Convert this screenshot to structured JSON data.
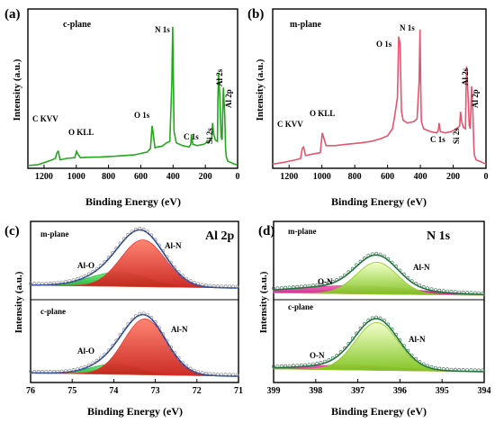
{
  "chart_data": [
    {
      "type": "line",
      "panel_label": "(a)",
      "sample_label": "c-plane",
      "xlabel": "Binding Energy (eV)",
      "ylabel": "Intensity (a.u.)",
      "xlim": [
        1300,
        0
      ],
      "xticks": [
        1200,
        1000,
        800,
        600,
        400,
        200,
        0
      ],
      "color": "#23a81c",
      "series": [
        {
          "x": [
            1300,
            1240,
            1200,
            1160,
            1130,
            1120,
            1112,
            1100,
            1060,
            1010,
            998,
            990,
            975,
            920,
            850,
            760,
            700,
            640,
            600,
            560,
            540,
            530,
            525,
            512,
            500,
            470,
            440,
            420,
            408,
            402,
            398,
            394,
            380,
            340,
            300,
            290,
            286,
            278,
            250,
            210,
            180,
            160,
            155,
            148,
            138,
            125,
            122,
            118,
            110,
            102,
            96,
            92,
            88,
            80,
            74,
            70,
            60,
            40,
            20,
            0
          ],
          "y": [
            2,
            2.5,
            4,
            5.5,
            7,
            11,
            12,
            6,
            7,
            7.5,
            12,
            10,
            7.5,
            7.8,
            8,
            8.5,
            9,
            9.5,
            10.5,
            11.5,
            14,
            30,
            26,
            14.5,
            15,
            15.5,
            18,
            19,
            60,
            100,
            60,
            26,
            18,
            16,
            15,
            17,
            24,
            17,
            16,
            17,
            19,
            21,
            32,
            24,
            20,
            19,
            48,
            67,
            50,
            22,
            20,
            40,
            57,
            38,
            13,
            8,
            5,
            4,
            3,
            2.5
          ]
        }
      ],
      "annotations": [
        "C KVV",
        "O KLL",
        "O 1s",
        "N 1s",
        "C 1s",
        "Si 2s",
        "Al 2s",
        "Al 2p"
      ]
    },
    {
      "type": "line",
      "panel_label": "(b)",
      "sample_label": "m-plane",
      "xlabel": "Binding Energy (eV)",
      "ylabel": "Intensity (a.u.)",
      "xlim": [
        1300,
        0
      ],
      "xticks": [
        1200,
        1000,
        800,
        600,
        400,
        200,
        0
      ],
      "color": "#e8546e",
      "series": [
        {
          "x": [
            1300,
            1240,
            1200,
            1160,
            1130,
            1120,
            1112,
            1100,
            1060,
            1010,
            998,
            990,
            975,
            920,
            850,
            760,
            700,
            640,
            600,
            570,
            555,
            540,
            532,
            524,
            515,
            505,
            480,
            440,
            420,
            408,
            402,
            398,
            394,
            380,
            340,
            300,
            290,
            286,
            278,
            250,
            210,
            180,
            160,
            155,
            148,
            138,
            125,
            122,
            118,
            110,
            102,
            96,
            92,
            88,
            80,
            74,
            70,
            60,
            40,
            20,
            0
          ],
          "y": [
            3,
            4,
            5,
            6,
            7,
            14,
            15,
            9,
            10,
            11,
            25,
            22,
            16,
            16,
            17,
            18,
            19,
            21,
            23,
            28,
            38,
            50,
            93,
            88,
            40,
            34,
            32,
            33,
            35,
            60,
            98,
            60,
            33,
            28,
            26,
            25,
            27,
            32,
            26,
            25,
            26,
            28,
            30,
            40,
            33,
            29,
            28,
            52,
            72,
            54,
            30,
            28,
            42,
            58,
            40,
            15,
            9,
            6,
            5,
            4,
            3
          ]
        }
      ],
      "annotations": [
        "C KVV",
        "O KLL",
        "O 1s",
        "N 1s",
        "C 1s",
        "Si 2s",
        "Al 2s",
        "Al 2p"
      ]
    },
    {
      "type": "line",
      "panel_label": "(c)",
      "title": "Al 2p",
      "xlabel": "Binding Energy (eV)",
      "ylabel": "Intensity (a.u.)",
      "xlim": [
        76,
        71
      ],
      "xticks": [
        76,
        75,
        74,
        73,
        72,
        71
      ],
      "subplots": [
        {
          "sample_label": "m-plane",
          "components": [
            {
              "name": "Al-N",
              "center": 73.3,
              "fwhm": 1.25,
              "height": 1.0,
              "color": "#e53a30"
            },
            {
              "name": "Al-O",
              "center": 73.9,
              "fwhm": 1.6,
              "height": 0.3,
              "color": "#23c23c"
            }
          ]
        },
        {
          "sample_label": "c-plane",
          "components": [
            {
              "name": "Al-N",
              "center": 73.25,
              "fwhm": 1.2,
              "height": 1.0,
              "color": "#e53a30"
            },
            {
              "name": "Al-O",
              "center": 74.0,
              "fwhm": 1.3,
              "height": 0.18,
              "color": "#23c23c"
            }
          ]
        }
      ],
      "envelope_color": "#1f3fa8",
      "data_marker_color": "#7f7f7f"
    },
    {
      "type": "line",
      "panel_label": "(d)",
      "title": "N 1s",
      "xlabel": "Binding Energy (eV)",
      "ylabel": "Intensity (a.u.)",
      "xlim": [
        399,
        394
      ],
      "xticks": [
        399,
        398,
        397,
        396,
        395,
        394
      ],
      "subplots": [
        {
          "sample_label": "m-plane",
          "components": [
            {
              "name": "Al-N",
              "center": 396.55,
              "fwhm": 1.15,
              "height": 0.8,
              "color": "#8ccc1e"
            },
            {
              "name": "O-N",
              "center": 397.1,
              "fwhm": 3.2,
              "height": 0.2,
              "color": "#e02a9a"
            }
          ]
        },
        {
          "sample_label": "c-plane",
          "components": [
            {
              "name": "Al-N",
              "center": 396.55,
              "fwhm": 1.2,
              "height": 1.0,
              "color": "#8ccc1e"
            },
            {
              "name": "O-N",
              "center": 397.2,
              "fwhm": 2.4,
              "height": 0.1,
              "color": "#e02a9a"
            }
          ]
        }
      ],
      "envelope_color": "#1f7a3a",
      "data_marker_color": "#2e6b4a"
    }
  ]
}
